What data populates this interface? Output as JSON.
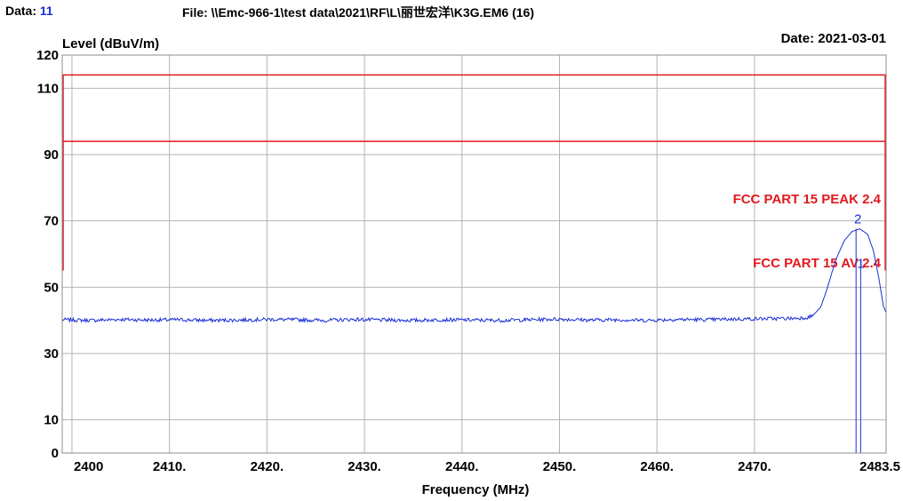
{
  "header": {
    "data_label": "Data:",
    "data_value": "11",
    "file": "File: \\\\Emc-966-1\\test data\\2021\\RF\\L\\丽世宏洋\\K3G.EM6  (16)"
  },
  "chart_data": {
    "type": "line",
    "title": "",
    "ylabel": "Level (dBuV/m)",
    "xlabel": "Frequency (MHz)",
    "date": "Date: 2021-03-01",
    "xlim": [
      2399,
      2483.5
    ],
    "ylim": [
      0,
      120
    ],
    "grid": true,
    "x_ticks": [
      {
        "value": 2400,
        "label": "2400"
      },
      {
        "value": 2410,
        "label": "2410."
      },
      {
        "value": 2420,
        "label": "2420."
      },
      {
        "value": 2430,
        "label": "2430."
      },
      {
        "value": 2440,
        "label": "2440."
      },
      {
        "value": 2450,
        "label": "2450."
      },
      {
        "value": 2460,
        "label": "2460."
      },
      {
        "value": 2470,
        "label": "2470."
      },
      {
        "value": 2483.5,
        "label": "2483.5"
      }
    ],
    "y_ticks": [
      {
        "value": 0,
        "label": "0"
      },
      {
        "value": 10,
        "label": "10"
      },
      {
        "value": 30,
        "label": "30"
      },
      {
        "value": 50,
        "label": "50"
      },
      {
        "value": 70,
        "label": "70"
      },
      {
        "value": 90,
        "label": "90"
      },
      {
        "value": 110,
        "label": "110"
      },
      {
        "value": 120,
        "label": "120"
      }
    ],
    "limits": [
      {
        "name": "FCC PART 15 PEAK 2.4",
        "value": 114,
        "x_start": 2399,
        "x_end": 2483.5,
        "color": "#e0191e"
      },
      {
        "name": "FCC PART 15 AV 2.4",
        "value": 94,
        "x_start": 2399,
        "x_end": 2483.5,
        "color": "#e0191e"
      }
    ],
    "series": [
      {
        "color": "#1a2fd6",
        "points": [
          [
            2399,
            40.2
          ],
          [
            2402,
            40.0
          ],
          [
            2405,
            40.3
          ],
          [
            2408,
            40.1
          ],
          [
            2411,
            40.2
          ],
          [
            2414,
            40.0
          ],
          [
            2417,
            40.1
          ],
          [
            2420,
            40.3
          ],
          [
            2423,
            40.2
          ],
          [
            2426,
            40.0
          ],
          [
            2429,
            40.3
          ],
          [
            2432,
            40.1
          ],
          [
            2435,
            40.0
          ],
          [
            2438,
            40.2
          ],
          [
            2441,
            40.1
          ],
          [
            2444,
            40.0
          ],
          [
            2447,
            40.2
          ],
          [
            2450,
            40.4
          ],
          [
            2453,
            40.1
          ],
          [
            2456,
            40.2
          ],
          [
            2459,
            40.0
          ],
          [
            2462,
            40.3
          ],
          [
            2465,
            40.2
          ],
          [
            2468,
            40.4
          ],
          [
            2471,
            40.5
          ],
          [
            2474,
            40.6
          ],
          [
            2475.5,
            40.9
          ],
          [
            2476,
            41.5
          ],
          [
            2476.8,
            44
          ],
          [
            2477.5,
            50
          ],
          [
            2478.3,
            58
          ],
          [
            2479.2,
            64
          ],
          [
            2480.0,
            66.8
          ],
          [
            2480.8,
            67.6
          ],
          [
            2481.6,
            66
          ],
          [
            2482.2,
            61
          ],
          [
            2482.8,
            52
          ],
          [
            2483.2,
            44.5
          ],
          [
            2483.5,
            42.3
          ]
        ]
      }
    ],
    "markers": [
      {
        "label": "1",
        "x": 2480.8,
        "y": 58
      },
      {
        "label": "2",
        "x": 2480.6,
        "y": 67.6
      }
    ]
  }
}
